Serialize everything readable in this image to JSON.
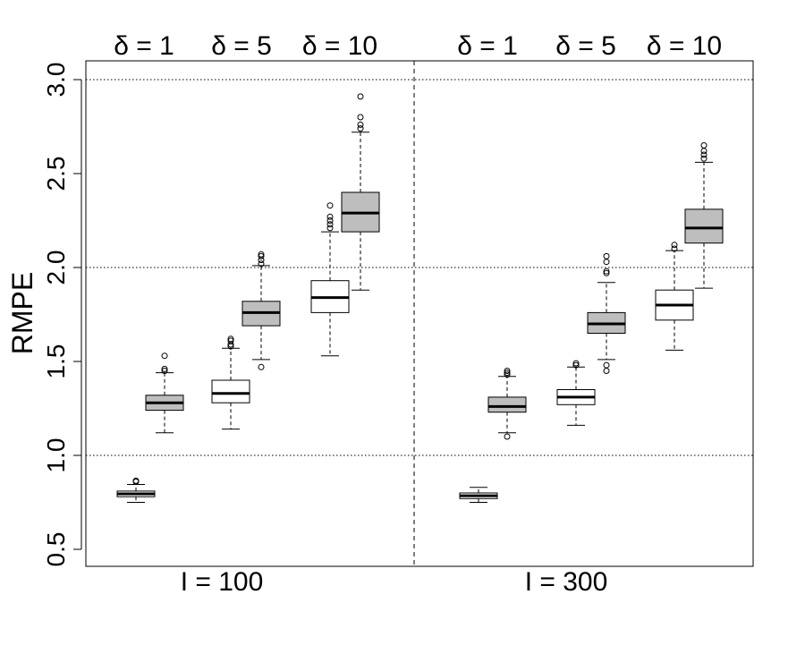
{
  "chart_data": {
    "type": "boxplot",
    "ylabel": "RMPE",
    "ylim": [
      0.4,
      3.1
    ],
    "yticks": [
      "0.5",
      "1.0",
      "1.5",
      "2.0",
      "2.5",
      "3.0"
    ],
    "reference_lines": [
      1.0,
      2.0,
      3.0
    ],
    "panels": [
      {
        "label": "I = 100",
        "groups": [
          {
            "label": "δ = 1",
            "boxes": [
              {
                "fill": "#ffffff",
                "whisker_low": 0.75,
                "q1": 0.78,
                "median": 0.795,
                "q3": 0.81,
                "whisker_high": 0.845,
                "outliers": [
                  0.86,
                  0.865
                ]
              }
            ]
          },
          {
            "label": "δ = 5",
            "boxes": [
              {
                "fill": "#bebebe",
                "whisker_low": 1.12,
                "q1": 1.24,
                "median": 1.28,
                "q3": 1.32,
                "whisker_high": 1.44,
                "outliers": [
                  1.45,
                  1.46,
                  1.53
                ]
              },
              {
                "fill": "#ffffff",
                "whisker_low": 1.14,
                "q1": 1.28,
                "median": 1.33,
                "q3": 1.4,
                "whisker_high": 1.57,
                "outliers": [
                  1.58,
                  1.59,
                  1.61,
                  1.62
                ]
              }
            ]
          },
          {
            "label": "δ = 10",
            "boxes": [
              {
                "fill": "#bebebe",
                "whisker_low": 1.51,
                "q1": 1.69,
                "median": 1.76,
                "q3": 1.82,
                "whisker_high": 2.01,
                "outliers": [
                  1.47,
                  2.02,
                  2.04,
                  2.06,
                  2.07
                ]
              },
              {
                "fill": "#ffffff",
                "whisker_low": 1.53,
                "q1": 1.76,
                "median": 1.84,
                "q3": 1.93,
                "whisker_high": 2.19,
                "outliers": [
                  2.21,
                  2.23,
                  2.25,
                  2.27,
                  2.33
                ]
              },
              {
                "fill": "#bebebe",
                "whisker_low": 1.88,
                "q1": 2.19,
                "median": 2.29,
                "q3": 2.4,
                "whisker_high": 2.72,
                "outliers": [
                  2.74,
                  2.76,
                  2.8,
                  2.91
                ]
              }
            ]
          }
        ]
      },
      {
        "label": "I = 300",
        "groups": [
          {
            "label": "δ = 1",
            "boxes": [
              {
                "fill": "#ffffff",
                "whisker_low": 0.75,
                "q1": 0.77,
                "median": 0.785,
                "q3": 0.8,
                "whisker_high": 0.83,
                "outliers": []
              }
            ]
          },
          {
            "label": "δ = 5",
            "boxes": [
              {
                "fill": "#bebebe",
                "whisker_low": 1.12,
                "q1": 1.23,
                "median": 1.26,
                "q3": 1.31,
                "whisker_high": 1.42,
                "outliers": [
                  1.1,
                  1.43,
                  1.44,
                  1.45
                ]
              },
              {
                "fill": "#ffffff",
                "whisker_low": 1.16,
                "q1": 1.27,
                "median": 1.31,
                "q3": 1.35,
                "whisker_high": 1.47,
                "outliers": [
                  1.48,
                  1.49
                ]
              }
            ]
          },
          {
            "label": "δ = 10",
            "boxes": [
              {
                "fill": "#bebebe",
                "whisker_low": 1.51,
                "q1": 1.65,
                "median": 1.7,
                "q3": 1.76,
                "whisker_high": 1.92,
                "outliers": [
                  1.45,
                  1.48,
                  1.97,
                  1.98,
                  2.03,
                  2.06
                ]
              },
              {
                "fill": "#ffffff",
                "whisker_low": 1.56,
                "q1": 1.72,
                "median": 1.8,
                "q3": 1.88,
                "whisker_high": 2.09,
                "outliers": [
                  2.1,
                  2.12
                ]
              },
              {
                "fill": "#bebebe",
                "whisker_low": 1.89,
                "q1": 2.13,
                "median": 2.21,
                "q3": 2.31,
                "whisker_high": 2.56,
                "outliers": [
                  2.58,
                  2.6,
                  2.62,
                  2.65
                ]
              }
            ]
          }
        ]
      }
    ]
  }
}
